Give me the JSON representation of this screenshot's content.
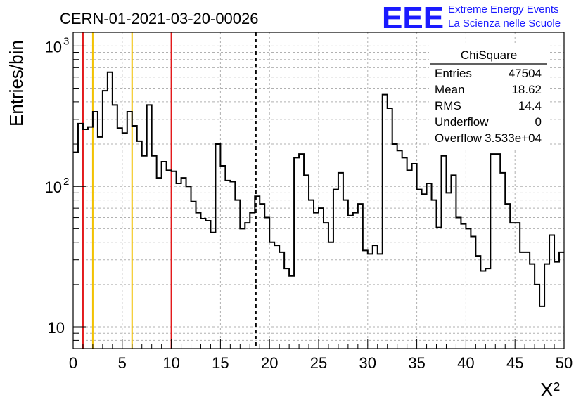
{
  "header": {
    "run_title": "CERN-01-2021-03-20-00026",
    "logo_text": "EEE",
    "logo_line1": "Extreme Energy Events",
    "logo_line2": "La Scienza nelle Scuole"
  },
  "stats_box": {
    "title": "ChiSquare",
    "rows": [
      {
        "label": "Entries",
        "value": "47504"
      },
      {
        "label": "Mean",
        "value": "18.62"
      },
      {
        "label": "RMS",
        "value": "14.4"
      },
      {
        "label": "Underflow",
        "value": "0"
      },
      {
        "label": "Overflow",
        "value": "3.533e+04"
      }
    ]
  },
  "colors": {
    "red_line": "#e31a1c",
    "yellow_line": "#f2c200",
    "logo_blue": "#1a1aff",
    "grid": "#b0b0b0"
  },
  "chart_data": {
    "type": "histogram",
    "xlabel": "X²",
    "ylabel": "Entries/bin",
    "xlim": [
      0,
      50
    ],
    "ylim": [
      7,
      1250
    ],
    "yscale": "log",
    "grid": true,
    "bin_width": 0.5,
    "x_ticks": [
      "0",
      "5",
      "10",
      "15",
      "20",
      "25",
      "30",
      "35",
      "40",
      "45",
      "50"
    ],
    "y_ticks": [
      {
        "value": 10,
        "label": "10"
      },
      {
        "value": 100,
        "label": "10",
        "exp": "2"
      },
      {
        "value": 1000,
        "label": "10",
        "exp": "3"
      }
    ],
    "values": [
      175,
      280,
      255,
      265,
      340,
      225,
      480,
      650,
      380,
      260,
      240,
      340,
      270,
      210,
      165,
      380,
      165,
      115,
      150,
      130,
      128,
      105,
      115,
      100,
      78,
      65,
      59,
      57,
      47,
      200,
      140,
      110,
      108,
      80,
      50,
      55,
      65,
      85,
      75,
      60,
      40,
      38,
      34,
      26,
      23,
      160,
      170,
      120,
      80,
      65,
      70,
      55,
      40,
      95,
      125,
      80,
      62,
      65,
      75,
      35,
      33,
      38,
      33,
      450,
      360,
      200,
      180,
      160,
      130,
      145,
      95,
      88,
      105,
      80,
      51,
      165,
      90,
      120,
      60,
      54,
      50,
      44,
      32,
      25,
      26,
      170,
      170,
      125,
      75,
      55,
      55,
      34,
      34,
      28,
      20,
      14,
      28,
      45,
      29,
      34
    ],
    "vertical_lines": [
      {
        "x": 1,
        "color": "red"
      },
      {
        "x": 2,
        "color": "yellow"
      },
      {
        "x": 6,
        "color": "yellow"
      },
      {
        "x": 10,
        "color": "red"
      },
      {
        "x": 18.62,
        "color": "black",
        "style": "dashed"
      }
    ]
  }
}
